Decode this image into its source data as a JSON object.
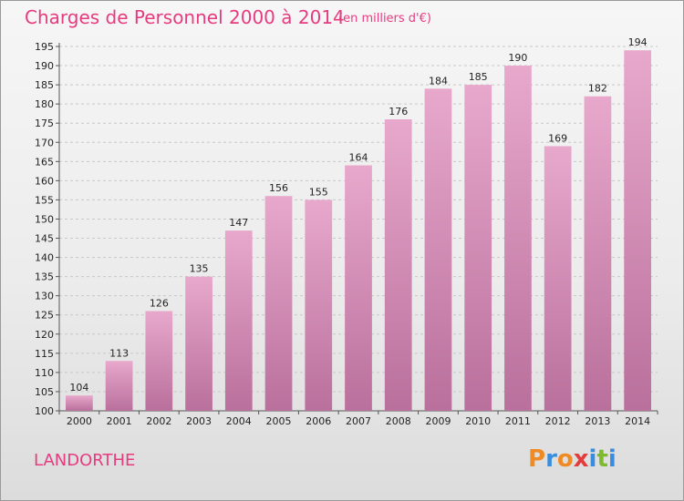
{
  "header": {
    "title": "Charges de Personnel 2000 à 2014",
    "subtitle": "(en milliers d'€)"
  },
  "footer": {
    "commune": "LANDORTHE",
    "logo_text": "Proxiti",
    "logo_colors": [
      "#f08a24",
      "#3a8dde",
      "#f08a24",
      "#e23c3c",
      "#3a8dde",
      "#7dbb2d",
      "#3a8dde"
    ]
  },
  "colors": {
    "accent": "#e63c7f",
    "bar_top": "#e8a8cc",
    "bar_bottom": "#b9709c"
  },
  "chart_data": {
    "type": "bar",
    "categories": [
      "2000",
      "2001",
      "2002",
      "2003",
      "2004",
      "2005",
      "2006",
      "2007",
      "2008",
      "2009",
      "2010",
      "2011",
      "2012",
      "2013",
      "2014"
    ],
    "values": [
      104,
      113,
      126,
      135,
      147,
      156,
      155,
      164,
      176,
      184,
      185,
      190,
      169,
      182,
      194
    ],
    "ylim": [
      100,
      195
    ],
    "yticks": [
      100,
      105,
      110,
      115,
      120,
      125,
      130,
      135,
      140,
      145,
      150,
      155,
      160,
      165,
      170,
      175,
      180,
      185,
      190,
      195
    ],
    "grid": true
  }
}
